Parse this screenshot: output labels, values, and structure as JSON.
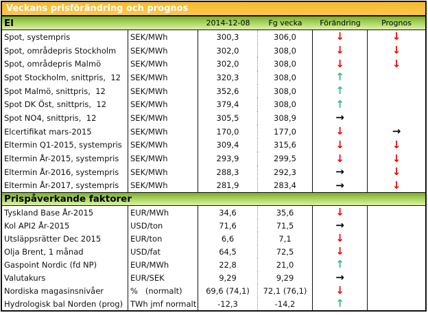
{
  "title": "Veckans prisförändring och prognos",
  "columns": [
    "2014-12-08",
    "Fg vecka",
    "Förändring",
    "Prognos"
  ],
  "colors": {
    "title_bar": "#F9C13C",
    "band_green_top": "#78AB32",
    "band_green_bottom": "#DCF2A8",
    "arrow_down": "#FF0000",
    "arrow_up": "#2EBD7C",
    "arrow_right": "#000000"
  },
  "arrow_styles": {
    "down": {
      "glyph": "↓",
      "color": "#FF0000"
    },
    "up": {
      "glyph": "↑",
      "color": "#2EBD7C"
    },
    "right": {
      "glyph": "→",
      "color": "#000000"
    }
  },
  "sections": [
    {
      "header": "El",
      "rows": [
        {
          "label": "Spot, systempris",
          "unit": "SEK/MWh",
          "current": "300,3",
          "prev": "306,0",
          "change": "down",
          "forecast": "down"
        },
        {
          "label": "Spot, områdepris Stockholm",
          "unit": "SEK/MWh",
          "current": "302,0",
          "prev": "308,0",
          "change": "down",
          "forecast": "down"
        },
        {
          "label": "Spot, områdepris Malmö",
          "unit": "SEK/MWh",
          "current": "302,0",
          "prev": "308,0",
          "change": "down",
          "forecast": "down"
        },
        {
          "label": "Spot Stockholm, snittpris,  12",
          "unit": "SEK/MWh",
          "current": "320,3",
          "prev": "308,0",
          "change": "up",
          "forecast": ""
        },
        {
          "label": "Spot Malmö, snittpris,  12",
          "unit": "SEK/MWh",
          "current": "352,6",
          "prev": "308,0",
          "change": "up",
          "forecast": ""
        },
        {
          "label": "Spot DK Öst, snittpris,  12",
          "unit": "SEK/MWh",
          "current": "379,4",
          "prev": "308,0",
          "change": "up",
          "forecast": ""
        },
        {
          "label": "Spot NO4, snittpris,  12",
          "unit": "SEK/MWh",
          "current": "305,5",
          "prev": "308,9",
          "change": "right",
          "forecast": ""
        },
        {
          "label": "Elcertifikat mars-2015",
          "unit": "SEK/MWh",
          "current": "170,0",
          "prev": "177,0",
          "change": "down",
          "forecast": "right"
        },
        {
          "label": "Eltermin Q1-2015, systempris",
          "unit": "SEK/MWh",
          "current": "309,4",
          "prev": "315,6",
          "change": "down",
          "forecast": "down"
        },
        {
          "label": "Eltermin År-2015, systempris",
          "unit": "SEK/MWh",
          "current": "293,9",
          "prev": "299,5",
          "change": "down",
          "forecast": "down"
        },
        {
          "label": "Eltermin År-2016, systempris",
          "unit": "SEK/MWh",
          "current": "288,3",
          "prev": "292,3",
          "change": "right",
          "forecast": "down"
        },
        {
          "label": "Eltermin År-2017, systempris",
          "unit": "SEK/MWh",
          "current": "281,9",
          "prev": "283,4",
          "change": "right",
          "forecast": "down"
        }
      ]
    },
    {
      "header": "Prispåverkande faktorer",
      "rows": [
        {
          "label": "Tyskland Base År-2015",
          "unit": "EUR/MWh",
          "current": "34,6",
          "prev": "35,6",
          "change": "down",
          "forecast": ""
        },
        {
          "label": "Kol API2 År-2015",
          "unit": "USD/ton",
          "current": "71,6",
          "prev": "71,5",
          "change": "right",
          "forecast": ""
        },
        {
          "label": "Utsläppsrätter Dec 2015",
          "unit": "EUR/ton",
          "current": "6,6",
          "prev": "7,1",
          "change": "down",
          "forecast": ""
        },
        {
          "label": "Olja Brent, 1 månad",
          "unit": "USD/fat",
          "current": "64,5",
          "prev": "72,5",
          "change": "down",
          "forecast": ""
        },
        {
          "label": "Gaspoint Nordic (fd NP)",
          "unit": "EUR/MWh",
          "current": "22,8",
          "prev": "21,0",
          "change": "up",
          "forecast": ""
        },
        {
          "label": "Valutakurs",
          "unit": "EUR/SEK",
          "current": "9,29",
          "prev": "9,29",
          "change": "right",
          "forecast": ""
        },
        {
          "label": "Nordiska magasinsnivåer",
          "unit": "%   (normalt)",
          "current": "69,6 (74,1)",
          "prev": "72,1 (76,1)",
          "change": "down",
          "forecast": ""
        },
        {
          "label": "Hydrologisk bal Norden (prog)",
          "unit": "TWh jmf normalt",
          "current": "-12,3",
          "prev": "-14,2",
          "change": "up",
          "forecast": ""
        }
      ]
    }
  ]
}
